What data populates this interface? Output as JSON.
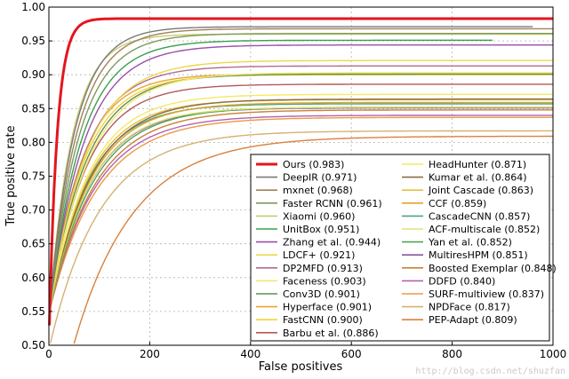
{
  "chart_data": {
    "type": "line",
    "title": "",
    "xlabel": "False positives",
    "ylabel": "True positive rate",
    "xlim": [
      0,
      1000
    ],
    "ylim": [
      0.5,
      1.0
    ],
    "xticks": [
      0,
      200,
      400,
      600,
      800,
      1000
    ],
    "yticks": [
      0.5,
      0.55,
      0.6,
      0.65,
      0.7,
      0.75,
      0.8,
      0.85,
      0.9,
      0.95,
      1.0
    ],
    "xtick_labels": [
      "0",
      "200",
      "400",
      "600",
      "800",
      "1000"
    ],
    "ytick_labels": [
      "0.50",
      "0.55",
      "0.60",
      "0.65",
      "0.70",
      "0.75",
      "0.80",
      "0.85",
      "0.90",
      "0.95",
      "1.00"
    ],
    "grid": true,
    "legend_position": "bottom-right",
    "series": [
      {
        "name": "Ours (0.983)",
        "color": "#e3161d",
        "final": 0.983,
        "max_x": 1000,
        "min_x": 1,
        "start_y": 0.5,
        "k": 35,
        "emph": true
      },
      {
        "name": "DeepIR (0.971)",
        "color": "#7a7a7a",
        "final": 0.971,
        "max_x": 960,
        "min_x": 2,
        "start_y": 0.55,
        "k": 110
      },
      {
        "name": "mxnet (0.968)",
        "color": "#a0815d",
        "final": 0.968,
        "max_x": 1000,
        "min_x": 2,
        "start_y": 0.55,
        "k": 120
      },
      {
        "name": "Faster RCNN (0.961)",
        "color": "#7d9a5e",
        "final": 0.961,
        "max_x": 1000,
        "min_x": 2,
        "start_y": 0.55,
        "k": 130
      },
      {
        "name": "Xiaomi (0.960)",
        "color": "#c8cc6a",
        "final": 0.96,
        "max_x": 1000,
        "min_x": 2,
        "start_y": 0.55,
        "k": 100
      },
      {
        "name": "UnitBox (0.951)",
        "color": "#3aa14c",
        "final": 0.951,
        "max_x": 880,
        "min_x": 2,
        "start_y": 0.55,
        "k": 140
      },
      {
        "name": "Zhang et al. (0.944)",
        "color": "#9a4fa8",
        "final": 0.944,
        "max_x": 1000,
        "min_x": 2,
        "start_y": 0.55,
        "k": 150
      },
      {
        "name": "LDCF+ (0.921)",
        "color": "#e9d94a",
        "final": 0.921,
        "max_x": 1000,
        "min_x": 2,
        "start_y": 0.55,
        "k": 160
      },
      {
        "name": "DP2MFD (0.913)",
        "color": "#b06c8e",
        "final": 0.913,
        "max_x": 1000,
        "min_x": 2,
        "start_y": 0.55,
        "k": 150
      },
      {
        "name": "Faceness (0.903)",
        "color": "#f1e76e",
        "final": 0.903,
        "max_x": 1000,
        "min_x": 2,
        "start_y": 0.55,
        "k": 170
      },
      {
        "name": "Conv3D (0.901)",
        "color": "#5b8f55",
        "final": 0.901,
        "max_x": 1000,
        "min_x": 2,
        "start_y": 0.55,
        "k": 160
      },
      {
        "name": "Hyperface (0.901)",
        "color": "#eaa431",
        "final": 0.901,
        "max_x": 1000,
        "min_x": 2,
        "start_y": 0.55,
        "k": 140
      },
      {
        "name": "FastCNN (0.900)",
        "color": "#f4d33a",
        "final": 0.9,
        "max_x": 1000,
        "min_x": 2,
        "start_y": 0.55,
        "k": 150
      },
      {
        "name": "Barbu et al. (0.886)",
        "color": "#b05b5a",
        "final": 0.886,
        "max_x": 1000,
        "min_x": 2,
        "start_y": 0.55,
        "k": 160
      },
      {
        "name": "HeadHunter (0.871)",
        "color": "#f3ea63",
        "final": 0.871,
        "max_x": 1000,
        "min_x": 2,
        "start_y": 0.55,
        "k": 170
      },
      {
        "name": "Kumar et al. (0.864)",
        "color": "#8b6d42",
        "final": 0.864,
        "max_x": 1000,
        "min_x": 2,
        "start_y": 0.55,
        "k": 180
      },
      {
        "name": "Joint Cascade (0.863)",
        "color": "#e7c042",
        "final": 0.863,
        "max_x": 1000,
        "min_x": 2,
        "start_y": 0.55,
        "k": 170
      },
      {
        "name": "CCF (0.859)",
        "color": "#e0a52a",
        "final": 0.859,
        "max_x": 1000,
        "min_x": 2,
        "start_y": 0.55,
        "k": 180
      },
      {
        "name": "CascadeCNN (0.857)",
        "color": "#4aa583",
        "final": 0.857,
        "max_x": 1000,
        "min_x": 2,
        "start_y": 0.55,
        "k": 170
      },
      {
        "name": "ACF-multiscale (0.852)",
        "color": "#e3e074",
        "final": 0.852,
        "max_x": 1000,
        "min_x": 2,
        "start_y": 0.55,
        "k": 180
      },
      {
        "name": "Yan et al. (0.852)",
        "color": "#52a456",
        "final": 0.852,
        "max_x": 1000,
        "min_x": 2,
        "start_y": 0.55,
        "k": 190
      },
      {
        "name": "MultiresHPM (0.851)",
        "color": "#8557a2",
        "final": 0.851,
        "max_x": 1000,
        "min_x": 2,
        "start_y": 0.55,
        "k": 180
      },
      {
        "name": "Boosted Exemplar (0.848)",
        "color": "#c88137",
        "final": 0.848,
        "max_x": 1000,
        "min_x": 2,
        "start_y": 0.55,
        "k": 200
      },
      {
        "name": "DDFD (0.840)",
        "color": "#b462b2",
        "final": 0.84,
        "max_x": 1000,
        "min_x": 2,
        "start_y": 0.55,
        "k": 200
      },
      {
        "name": "SURF-multiview (0.837)",
        "color": "#ea9a44",
        "final": 0.837,
        "max_x": 1000,
        "min_x": 2,
        "start_y": 0.55,
        "k": 210
      },
      {
        "name": "NPDFace (0.817)",
        "color": "#d3b370",
        "final": 0.817,
        "max_x": 1000,
        "min_x": 3,
        "start_y": 0.5,
        "k": 220
      },
      {
        "name": "PEP-Adapt (0.809)",
        "color": "#d9813d",
        "final": 0.809,
        "max_x": 1000,
        "min_x": 50,
        "start_y": 0.5,
        "k": 260
      }
    ]
  },
  "watermark": "http://blog.csdn.net/shuzfan"
}
